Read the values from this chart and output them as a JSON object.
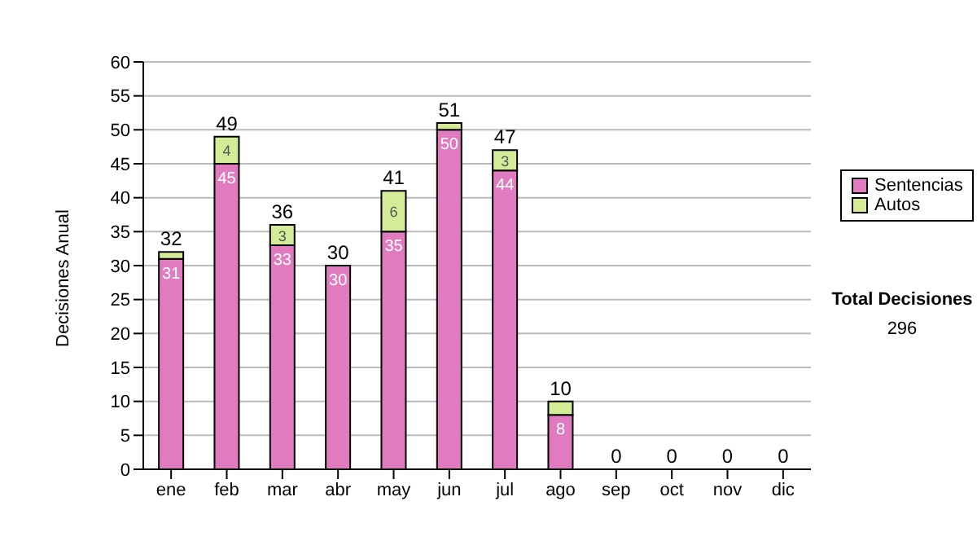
{
  "chart_data": {
    "type": "bar",
    "ylabel": "Decisiones Anual",
    "stacked": true,
    "categories": [
      "ene",
      "feb",
      "mar",
      "abr",
      "may",
      "jun",
      "jul",
      "ago",
      "sep",
      "oct",
      "nov",
      "dic"
    ],
    "series": [
      {
        "name": "Sentencias",
        "color": "#e07bc0",
        "values": [
          31,
          45,
          33,
          30,
          35,
          50,
          44,
          8,
          0,
          0,
          0,
          0
        ],
        "value_labels": [
          "31",
          "45",
          "33",
          "30",
          "35",
          "50",
          "44",
          "8",
          null,
          null,
          null,
          null
        ]
      },
      {
        "name": "Autos",
        "color": "#d4ec98",
        "values": [
          1,
          4,
          3,
          0,
          6,
          1,
          3,
          2,
          0,
          0,
          0,
          0
        ],
        "value_labels": [
          null,
          "4",
          "3",
          null,
          "6",
          null,
          "3",
          null,
          null,
          null,
          null,
          null
        ]
      }
    ],
    "totals": [
      "32",
      "49",
      "36",
      "30",
      "41",
      "51",
      "47",
      "10",
      "0",
      "0",
      "0",
      "0"
    ],
    "ylim": [
      0,
      60
    ],
    "yticks": [
      0,
      5,
      10,
      15,
      20,
      25,
      30,
      35,
      40,
      45,
      50,
      55,
      60
    ],
    "grid": "y",
    "legend": "right",
    "annotations": [
      "Total Decisiones",
      "296"
    ]
  }
}
